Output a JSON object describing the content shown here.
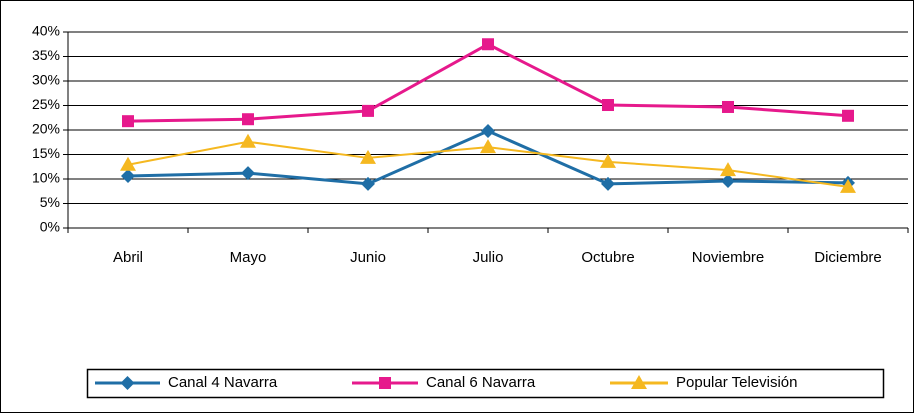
{
  "chart_data": {
    "type": "line",
    "categories": [
      "Abril",
      "Mayo",
      "Junio",
      "Julio",
      "Octubre",
      "Noviembre",
      "Diciembre"
    ],
    "series": [
      {
        "name": "Canal 4 Navarra",
        "color": "#1f6ea6",
        "marker": "diamond",
        "values": [
          10.6,
          11.2,
          9.0,
          19.8,
          9.0,
          9.6,
          9.2
        ]
      },
      {
        "name": "Canal 6 Navarra",
        "color": "#e6198c",
        "marker": "square",
        "values": [
          21.8,
          22.2,
          23.9,
          37.5,
          25.1,
          24.7,
          22.9
        ]
      },
      {
        "name": "Popular Televisión",
        "color": "#f5b820",
        "marker": "triangle",
        "values": [
          12.9,
          17.6,
          14.3,
          16.5,
          13.5,
          11.8,
          8.4
        ]
      }
    ],
    "ylim": [
      0,
      40
    ],
    "yticks": [
      {
        "value": 0,
        "label": "0%"
      },
      {
        "value": 5,
        "label": "5%"
      },
      {
        "value": 10,
        "label": "10%"
      },
      {
        "value": 15,
        "label": "15%"
      },
      {
        "value": 20,
        "label": "20%"
      },
      {
        "value": 25,
        "label": "25%"
      },
      {
        "value": 30,
        "label": "30%"
      },
      {
        "value": 35,
        "label": "35%"
      },
      {
        "value": 40,
        "label": "40%"
      }
    ],
    "grid": true,
    "legend": "bottom"
  }
}
